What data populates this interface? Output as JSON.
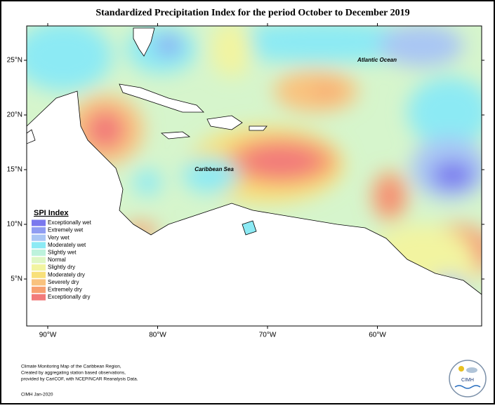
{
  "title": "Standardized Precipitation Index for the period October to December 2019",
  "map": {
    "lon_ticks": [
      "90°W",
      "80°W",
      "70°W",
      "60°W"
    ],
    "lat_ticks": [
      "25°N",
      "20°N",
      "15°N",
      "10°N",
      "5°N"
    ],
    "labels": [
      "Atlantic Ocean",
      "Caribbean Sea"
    ]
  },
  "legend": {
    "title": "SPI Index",
    "items": [
      {
        "label": "Exceptionally wet",
        "color": "#7a78ee"
      },
      {
        "label": "Extremely wet",
        "color": "#8f9df2"
      },
      {
        "label": "Very wet",
        "color": "#a9c6f4"
      },
      {
        "label": "Moderately wet",
        "color": "#8ceaf4"
      },
      {
        "label": "Slightly wet",
        "color": "#bdf2dc"
      },
      {
        "label": "Normal",
        "color": "#dff7c4"
      },
      {
        "label": "Slightly dry",
        "color": "#f2f4a0"
      },
      {
        "label": "Moderately dry",
        "color": "#f8e07a"
      },
      {
        "label": "Severely dry",
        "color": "#f9c27e"
      },
      {
        "label": "Extremely dry",
        "color": "#f7a070"
      },
      {
        "label": "Exceptionally dry",
        "color": "#f27a7a"
      }
    ]
  },
  "footer": {
    "notes": [
      "Climate Monitoring Map of the Caribbean Region,",
      "Created by aggregating station based observations,",
      "provided by CariCOF, with NCEP/NCAR Reanalysis Data."
    ],
    "credit": "CIMH Jan-2020",
    "logo": "CIMH"
  }
}
